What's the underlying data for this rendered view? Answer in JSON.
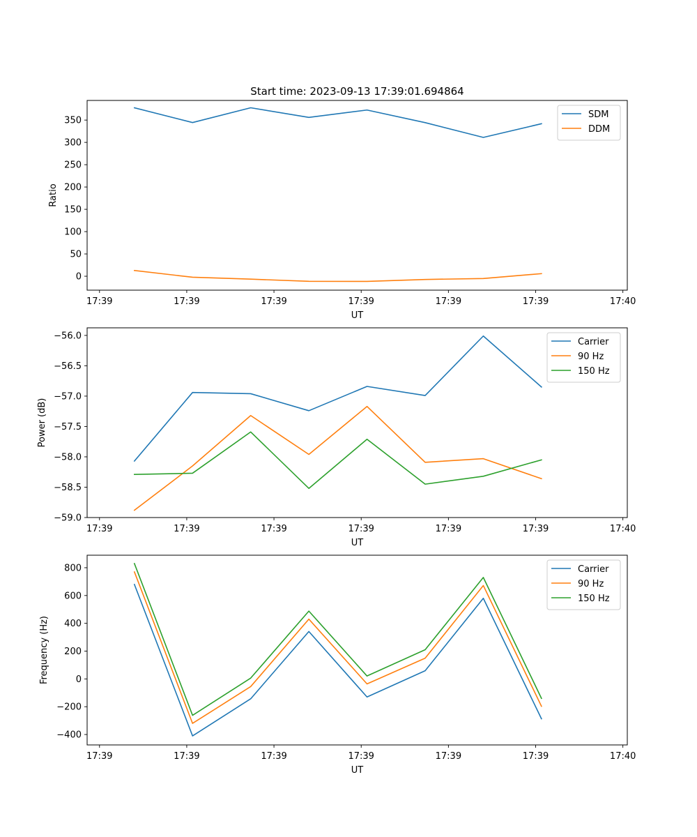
{
  "figure": {
    "title": "Start time: 2023-09-13 17:39:01.694864"
  },
  "colors": {
    "blue": "#1f77b4",
    "orange": "#ff7f0e",
    "green": "#2ca02c"
  },
  "chart_data": [
    {
      "type": "line",
      "ylabel": "Ratio",
      "xlabel": "UT",
      "x": [
        1,
        2,
        3,
        4,
        5,
        6,
        7,
        8
      ],
      "xlim": [
        0.187,
        9.476
      ],
      "xticks": [
        0.4,
        1.9,
        3.4,
        4.9,
        6.4,
        7.9,
        9.4
      ],
      "xticklabels": [
        "17:39",
        "17:39",
        "17:39",
        "17:39",
        "17:39",
        "17:39",
        "17:40"
      ],
      "ylim": [
        -31.2,
        394
      ],
      "yticks": [
        0,
        50,
        100,
        150,
        200,
        250,
        300,
        350
      ],
      "yticklabels": [
        "0",
        "50",
        "100",
        "150",
        "200",
        "250",
        "300",
        "350"
      ],
      "legend": "top-right",
      "series": [
        {
          "name": "SDM",
          "color": "#1f77b4",
          "values": [
            377.5,
            344.5,
            377.6,
            356.0,
            372.5,
            344.3,
            311.2,
            341.8
          ]
        },
        {
          "name": "DDM",
          "color": "#ff7f0e",
          "values": [
            12.8,
            -2.2,
            -6.5,
            -11.4,
            -11.6,
            -7.2,
            -5.1,
            5.8
          ]
        }
      ]
    },
    {
      "type": "line",
      "ylabel": "Power (dB)",
      "xlabel": "UT",
      "x": [
        1,
        2,
        3,
        4,
        5,
        6,
        7,
        8
      ],
      "xlim": [
        0.187,
        9.476
      ],
      "xticks": [
        0.4,
        1.9,
        3.4,
        4.9,
        6.4,
        7.9,
        9.4
      ],
      "xticklabels": [
        "17:39",
        "17:39",
        "17:39",
        "17:39",
        "17:39",
        "17:39",
        "17:40"
      ],
      "ylim": [
        -59.0,
        -55.875
      ],
      "yticks": [
        -59.0,
        -58.5,
        -58.0,
        -57.5,
        -57.0,
        -56.5,
        -56.0
      ],
      "yticklabels": [
        "−59.0",
        "−58.5",
        "−58.0",
        "−57.5",
        "−57.0",
        "−56.5",
        "−56.0"
      ],
      "legend": "top-right",
      "series": [
        {
          "name": "Carrier",
          "color": "#1f77b4",
          "values": [
            -58.07,
            -56.94,
            -56.96,
            -57.24,
            -56.84,
            -56.99,
            -56.01,
            -56.85
          ]
        },
        {
          "name": "90 Hz",
          "color": "#ff7f0e",
          "values": [
            -58.88,
            -58.15,
            -57.32,
            -57.96,
            -57.17,
            -58.09,
            -58.03,
            -58.36
          ]
        },
        {
          "name": "150 Hz",
          "color": "#2ca02c",
          "values": [
            -58.29,
            -58.27,
            -57.59,
            -58.52,
            -57.71,
            -58.45,
            -58.32,
            -58.05
          ]
        }
      ]
    },
    {
      "type": "line",
      "ylabel": "Frequency (Hz)",
      "xlabel": "UT",
      "x": [
        1,
        2,
        3,
        4,
        5,
        6,
        7,
        8
      ],
      "xlim": [
        0.187,
        9.476
      ],
      "xticks": [
        0.4,
        1.9,
        3.4,
        4.9,
        6.4,
        7.9,
        9.4
      ],
      "xticklabels": [
        "17:39",
        "17:39",
        "17:39",
        "17:39",
        "17:39",
        "17:39",
        "17:40"
      ],
      "ylim": [
        -475,
        890
      ],
      "yticks": [
        -400,
        -200,
        0,
        200,
        400,
        600,
        800
      ],
      "yticklabels": [
        "−400",
        "−200",
        "0",
        "200",
        "400",
        "600",
        "800"
      ],
      "legend": "top-right",
      "series": [
        {
          "name": "Carrier",
          "color": "#1f77b4",
          "values": [
            680,
            -410,
            -143,
            341,
            -130,
            59,
            580,
            -287
          ]
        },
        {
          "name": "90 Hz",
          "color": "#ff7f0e",
          "values": [
            770,
            -320,
            -55,
            430,
            -36,
            149,
            672,
            -197
          ]
        },
        {
          "name": "150 Hz",
          "color": "#2ca02c",
          "values": [
            830,
            -262,
            6,
            488,
            21,
            210,
            730,
            -140
          ]
        }
      ]
    }
  ]
}
